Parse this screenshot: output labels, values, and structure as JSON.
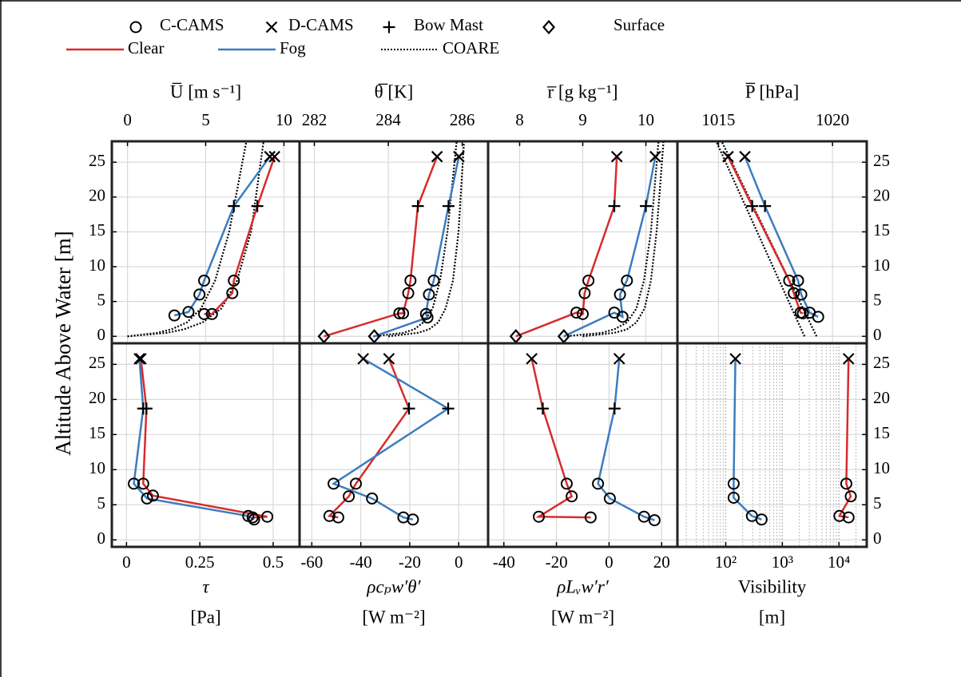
{
  "chart_data": {
    "type": "line",
    "y_label": "Altitude Above Water [m]",
    "ylim": [
      -1,
      28
    ],
    "yticks": [
      0,
      5,
      10,
      15,
      20,
      25
    ],
    "grid": true,
    "legend": {
      "markers": [
        {
          "label": "C-CAMS",
          "symbol": "o"
        },
        {
          "label": "D-CAMS",
          "symbol": "x"
        },
        {
          "label": "Bow Mast",
          "symbol": "+"
        },
        {
          "label": "Surface",
          "symbol": "d"
        }
      ],
      "lines": [
        {
          "label": "Clear",
          "color": "#d92b2b",
          "style": "solid"
        },
        {
          "label": "Fog",
          "color": "#3b7dbf",
          "style": "solid"
        },
        {
          "label": "COARE",
          "color": "#000000",
          "style": "dotted"
        }
      ]
    },
    "panels": [
      {
        "xlabel": [
          "U̅ [m s⁻¹]"
        ],
        "xlim": [
          -1,
          11
        ],
        "xticks": [
          0,
          5,
          10
        ],
        "xscale": "linear",
        "series": [
          {
            "color": "#d92b2b",
            "values": [
              4.9,
              5.4,
              6.7,
              6.8,
              8.3,
              9.4
            ],
            "altitude": [
              3.2,
              3.2,
              6.2,
              8,
              18.7,
              25.8
            ],
            "markers": [
              "o",
              "o",
              "o",
              "o",
              "+",
              "x"
            ]
          },
          {
            "color": "#3b7dbf",
            "values": [
              3.0,
              3.9,
              4.6,
              4.9,
              6.8,
              9.1
            ],
            "altitude": [
              3,
              3.5,
              6,
              8,
              18.7,
              25.8
            ],
            "markers": [
              "o",
              "o",
              "o",
              "o",
              "+",
              "x"
            ]
          }
        ],
        "coare": [
          {
            "values": [
              0,
              1.9,
              2.8,
              3.8,
              4.7,
              5.6,
              6.5,
              7.6
            ],
            "altitude": [
              0,
              0.5,
              1,
              2,
              4,
              8,
              15,
              28
            ]
          },
          {
            "values": [
              0,
              2.5,
              3.6,
              4.8,
              6.0,
              7.0,
              7.9,
              8.7
            ],
            "altitude": [
              0,
              0.5,
              1,
              2,
              4,
              8,
              15,
              28
            ]
          }
        ]
      },
      {
        "xlabel": [
          "θ̅ [K]"
        ],
        "xlim": [
          281.6,
          286.7
        ],
        "xticks": [
          282,
          284,
          286
        ],
        "xscale": "linear",
        "series": [
          {
            "color": "#d92b2b",
            "values": [
              282.26,
              284.3,
              284.4,
              284.54,
              284.6,
              284.8,
              285.32
            ],
            "altitude": [
              0,
              3.3,
              3.3,
              6.2,
              8,
              18.7,
              25.8
            ],
            "markers": [
              "d",
              "o",
              "o",
              "o",
              "o",
              "+",
              "x"
            ]
          },
          {
            "color": "#3b7dbf",
            "values": [
              283.62,
              285.06,
              285.02,
              285.1,
              285.23,
              285.63,
              285.91
            ],
            "altitude": [
              0,
              2.7,
              3.2,
              6,
              8,
              18.7,
              25.8
            ],
            "markers": [
              "d",
              "o",
              "o",
              "o",
              "o",
              "+",
              "x"
            ]
          }
        ],
        "coare": [
          {
            "values": [
              283.6,
              284.4,
              284.7,
              284.95,
              285.2,
              285.4,
              285.6,
              285.85
            ],
            "altitude": [
              0,
              0.5,
              1,
              2,
              4,
              8,
              15,
              28
            ]
          },
          {
            "values": [
              284.0,
              284.8,
              285.1,
              285.35,
              285.55,
              285.75,
              285.9,
              286.05
            ],
            "altitude": [
              0,
              0.5,
              1,
              2,
              4,
              8,
              15,
              28
            ]
          }
        ]
      },
      {
        "xlabel": [
          "r̅ [g kg⁻¹]"
        ],
        "xlim": [
          7.5,
          10.5
        ],
        "xticks": [
          8,
          9,
          10
        ],
        "xscale": "linear",
        "series": [
          {
            "color": "#d92b2b",
            "values": [
              7.94,
              8.9,
              9.0,
              9.03,
              9.09,
              9.5,
              9.54
            ],
            "altitude": [
              0,
              3.4,
              3.2,
              6.2,
              8,
              18.7,
              25.8
            ],
            "markers": [
              "d",
              "o",
              "o",
              "o",
              "o",
              "+",
              "x"
            ]
          },
          {
            "color": "#3b7dbf",
            "values": [
              8.7,
              9.5,
              9.63,
              9.59,
              9.7,
              10.0,
              10.15
            ],
            "altitude": [
              0,
              3.4,
              2.8,
              6,
              8,
              18.7,
              25.8
            ],
            "markers": [
              "d",
              "o",
              "o",
              "o",
              "o",
              "+",
              "x"
            ]
          }
        ],
        "coare": [
          {
            "values": [
              8.7,
              9.3,
              9.5,
              9.7,
              9.85,
              9.97,
              10.08,
              10.2
            ],
            "altitude": [
              0,
              0.5,
              1,
              2,
              4,
              8,
              15,
              28
            ]
          },
          {
            "values": [
              9.0,
              9.5,
              9.7,
              9.85,
              9.98,
              10.08,
              10.17,
              10.28
            ],
            "altitude": [
              0,
              0.5,
              1,
              2,
              4,
              8,
              15,
              28
            ]
          }
        ]
      },
      {
        "xlabel": [
          "P̅ [hPa]"
        ],
        "xlim": [
          1013.2,
          1021.5
        ],
        "xticks": [
          1015,
          1020
        ],
        "xscale": "linear",
        "series": [
          {
            "color": "#d92b2b",
            "values": [
              1015.42,
              1016.48,
              1018.1,
              1018.3,
              1018.6,
              1018.7
            ],
            "altitude": [
              25.8,
              18.7,
              8,
              6.2,
              3.4,
              3.3
            ],
            "markers": [
              "x",
              "+",
              "o",
              "o",
              "o",
              "o"
            ]
          },
          {
            "color": "#3b7dbf",
            "values": [
              1016.16,
              1017.04,
              1018.49,
              1018.63,
              1019.0,
              1019.37
            ],
            "altitude": [
              25.8,
              18.7,
              8,
              6,
              3.4,
              2.8
            ],
            "markers": [
              "x",
              "+",
              "o",
              "o",
              "o",
              "o"
            ]
          }
        ],
        "coare": [
          {
            "values": [
              1018.77,
              1014.9
            ],
            "altitude": [
              0,
              28
            ]
          },
          {
            "values": [
              1019.3,
              1015.14
            ],
            "altitude": [
              0,
              28
            ]
          }
        ]
      },
      {
        "xlabel": [
          "τ",
          "[Pa]"
        ],
        "xlim": [
          -0.05,
          0.59
        ],
        "xticks": [
          0,
          0.25,
          0.5
        ],
        "xscale": "linear",
        "series": [
          {
            "color": "#d92b2b",
            "values": [
              0.049,
              0.068,
              0.057,
              0.09,
              0.48,
              0.43
            ],
            "altitude": [
              25.8,
              18.7,
              8,
              6.3,
              3.3,
              3.2
            ],
            "markers": [
              "x",
              "+",
              "o",
              "o",
              "o",
              "o"
            ]
          },
          {
            "color": "#3b7dbf",
            "values": [
              0.044,
              0.057,
              0.025,
              0.07,
              0.415,
              0.435
            ],
            "altitude": [
              25.8,
              18.7,
              8,
              5.9,
              3.4,
              2.9
            ],
            "markers": [
              "x",
              "+",
              "o",
              "o",
              "o",
              "o"
            ]
          }
        ]
      },
      {
        "xlabel": [
          "ρcₚw′θ′",
          "[W m⁻²]"
        ],
        "xlim": [
          -65,
          12
        ],
        "xticks": [
          -60,
          -40,
          -20,
          0
        ],
        "xscale": "linear",
        "series": [
          {
            "color": "#d92b2b",
            "values": [
              -28.5,
              -20.3,
              -42.0,
              -44.9,
              -52.8,
              -49.2
            ],
            "altitude": [
              25.8,
              18.7,
              8,
              6.2,
              3.4,
              3.2
            ],
            "markers": [
              "x",
              "+",
              "o",
              "o",
              "o",
              "o"
            ]
          },
          {
            "color": "#3b7dbf",
            "values": [
              -39,
              -4.3,
              -51.1,
              -35.4,
              -22.6,
              -18.7
            ],
            "altitude": [
              25.8,
              18.7,
              8,
              5.9,
              3.2,
              2.9
            ],
            "markers": [
              "x",
              "+",
              "o",
              "o",
              "o",
              "o"
            ]
          }
        ]
      },
      {
        "xlabel": [
          "ρLᵥw′r′",
          "[W m⁻²]"
        ],
        "xlim": [
          -46,
          26
        ],
        "xticks": [
          -40,
          -20,
          0,
          20
        ],
        "xscale": "linear",
        "series": [
          {
            "color": "#d92b2b",
            "values": [
              -29.4,
              -25.2,
              -16.1,
              -14.2,
              -26.7,
              -7
            ],
            "altitude": [
              25.8,
              18.7,
              8,
              6.2,
              3.3,
              3.2
            ],
            "markers": [
              "x",
              "+",
              "o",
              "o",
              "o",
              "o"
            ]
          },
          {
            "color": "#3b7dbf",
            "values": [
              3.9,
              2.1,
              -4.2,
              0.3,
              13.3,
              17.3
            ],
            "altitude": [
              25.8,
              18.7,
              8,
              5.9,
              3.3,
              2.8
            ],
            "markers": [
              "x",
              "+",
              "o",
              "o",
              "o",
              "o"
            ]
          }
        ]
      },
      {
        "xlabel": [
          "Visibility",
          "[m]"
        ],
        "xlim": [
          14,
          31000
        ],
        "xticks": [
          {
            "value": 100,
            "label": "10²"
          },
          {
            "value": 1000,
            "label": "10³"
          },
          {
            "value": 10000,
            "label": "10⁴"
          }
        ],
        "xscale": "log",
        "series": [
          {
            "color": "#d92b2b",
            "values": [
              14800,
              13500,
              16200,
              10200,
              14800
            ],
            "altitude": [
              25.8,
              8,
              6.2,
              3.4,
              3.2
            ],
            "markers": [
              "x",
              "o",
              "o",
              "o",
              "o"
            ]
          },
          {
            "color": "#3b7dbf",
            "values": [
              148,
              138,
              138,
              290,
              430
            ],
            "altitude": [
              25.8,
              8,
              6,
              3.4,
              2.9
            ],
            "markers": [
              "x",
              "o",
              "o",
              "o",
              "o"
            ]
          }
        ]
      }
    ]
  }
}
